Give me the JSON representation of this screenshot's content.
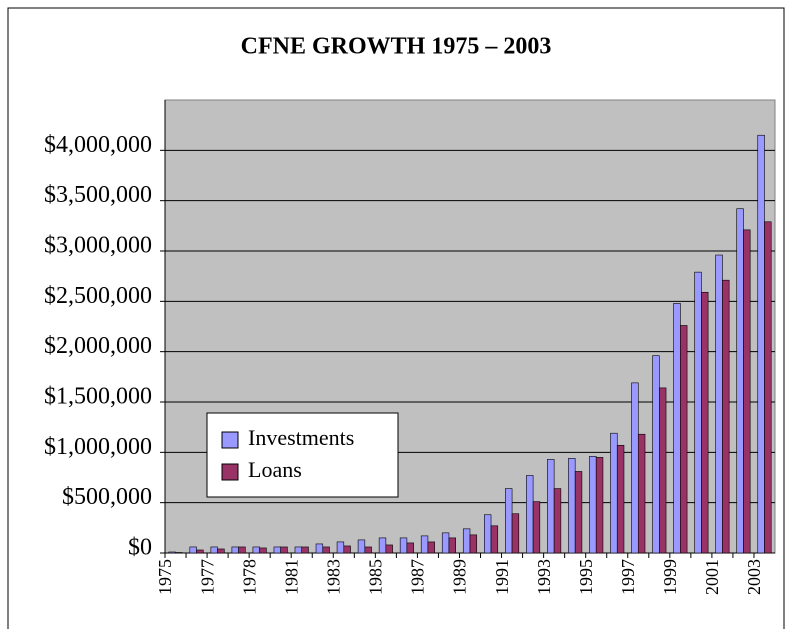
{
  "chart_data": {
    "type": "bar",
    "title": "CFNE GROWTH 1975 – 2003",
    "categories": [
      "1975",
      null,
      "1977",
      null,
      "1978",
      null,
      "1981",
      null,
      "1983",
      null,
      "1985",
      null,
      "1987",
      null,
      "1989",
      null,
      "1991",
      null,
      "1993",
      null,
      "1995",
      null,
      "1997",
      null,
      "1999",
      null,
      "2001",
      null,
      "2003"
    ],
    "series": [
      {
        "name": "Investments",
        "color": "#9999ff",
        "values": [
          10000,
          60000,
          60000,
          60000,
          60000,
          60000,
          60000,
          90000,
          110000,
          130000,
          150000,
          150000,
          170000,
          200000,
          240000,
          380000,
          640000,
          770000,
          930000,
          940000,
          960000,
          1190000,
          1690000,
          1960000,
          2480000,
          2790000,
          2960000,
          3420000,
          4150000
        ]
      },
      {
        "name": "Loans",
        "color": "#993366",
        "values": [
          5000,
          30000,
          40000,
          60000,
          50000,
          60000,
          60000,
          60000,
          70000,
          60000,
          80000,
          100000,
          110000,
          150000,
          180000,
          270000,
          390000,
          510000,
          640000,
          810000,
          950000,
          1070000,
          1180000,
          1640000,
          2260000,
          2590000,
          2710000,
          3210000,
          3290000
        ]
      }
    ],
    "ylim": [
      0,
      4500000
    ],
    "yticks": [
      {
        "value": 0,
        "label": "$0"
      },
      {
        "value": 500000,
        "label": "$500,000"
      },
      {
        "value": 1000000,
        "label": "$1,000,000"
      },
      {
        "value": 1500000,
        "label": "$1,500,000"
      },
      {
        "value": 2000000,
        "label": "$2,000,000"
      },
      {
        "value": 2500000,
        "label": "$2,500,000"
      },
      {
        "value": 3000000,
        "label": "$3,000,000"
      },
      {
        "value": 3500000,
        "label": "$3,500,000"
      },
      {
        "value": 4000000,
        "label": "$4,000,000"
      }
    ],
    "grid": true
  }
}
